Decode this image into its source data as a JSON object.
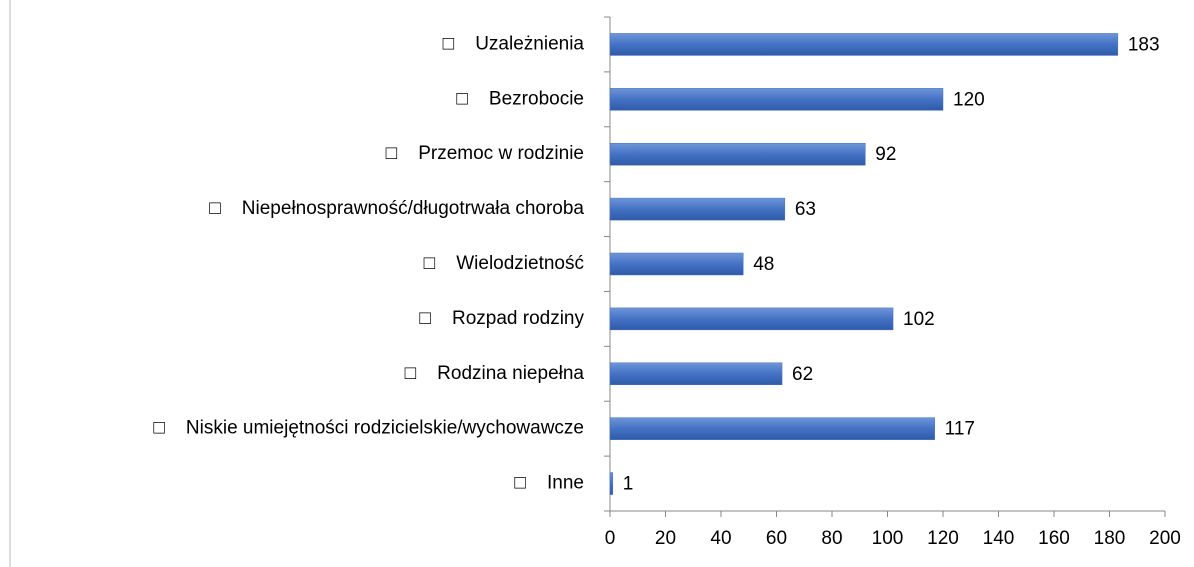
{
  "chart_data": {
    "type": "bar",
    "orientation": "horizontal",
    "categories": [
      "□    Uzależnienia",
      "□    Bezrobocie",
      "□    Przemoc w rodzinie",
      "□    Niepełnosprawność/długotrwała choroba",
      "□    Wielodzietność",
      "□    Rozpad rodziny",
      "□    Rodzina niepełna",
      "□    Niskie umiejętności rodzicielskie/wychowawcze",
      "□    Inne"
    ],
    "values": [
      183,
      120,
      92,
      63,
      48,
      102,
      62,
      117,
      1
    ],
    "color": "#4472c4",
    "xlim": [
      0,
      200
    ],
    "xticks": [
      0,
      20,
      40,
      60,
      80,
      100,
      120,
      140,
      160,
      180,
      200
    ],
    "grid": false
  }
}
